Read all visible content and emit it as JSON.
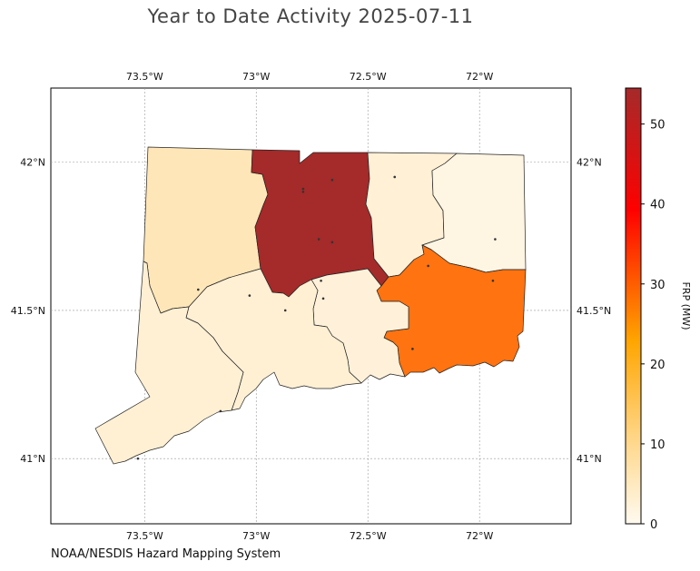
{
  "title": "Year to Date Activity 2025-07-11",
  "credit": "NOAA/NESDIS Hazard Mapping System",
  "map": {
    "extent": {
      "lon_min": -73.92,
      "lon_max": -71.59,
      "lat_min": 40.78,
      "lat_max": 42.25
    },
    "lon_ticks": [
      {
        "value": -73.5,
        "label": "73.5°W"
      },
      {
        "value": -73.0,
        "label": "73°W"
      },
      {
        "value": -72.5,
        "label": "72.5°W"
      },
      {
        "value": -72.0,
        "label": "72°W"
      }
    ],
    "lat_ticks": [
      {
        "value": 42.0,
        "label": "42°N"
      },
      {
        "value": 41.5,
        "label": "41.5°N"
      },
      {
        "value": 41.0,
        "label": "41°N"
      }
    ],
    "grid": true
  },
  "colorbar": {
    "label": "FRP (MW)",
    "min": 0,
    "max": 54.5,
    "ticks": [
      {
        "value": 0,
        "label": "0"
      },
      {
        "value": 10,
        "label": "10"
      },
      {
        "value": 20,
        "label": "20"
      },
      {
        "value": 30,
        "label": "30"
      },
      {
        "value": 40,
        "label": "40"
      },
      {
        "value": 50,
        "label": "50"
      }
    ],
    "stops": [
      {
        "frac": 0.0,
        "color": "#fffaf0"
      },
      {
        "frac": 0.2,
        "color": "#ffd585"
      },
      {
        "frac": 0.42,
        "color": "#ffa500"
      },
      {
        "frac": 0.72,
        "color": "#ff0000"
      },
      {
        "frac": 1.0,
        "color": "#a52a2a"
      }
    ]
  },
  "counties": [
    {
      "id": "litchfield",
      "frp": 5,
      "color": "#ffe6b8"
    },
    {
      "id": "hartford",
      "frp": 54.5,
      "color": "#a52a2a"
    },
    {
      "id": "tolland",
      "frp": 2,
      "color": "#fff0d6"
    },
    {
      "id": "windham",
      "frp": 1,
      "color": "#fff5e3"
    },
    {
      "id": "fairfield",
      "frp": 2.5,
      "color": "#fff0d4"
    },
    {
      "id": "new-haven",
      "frp": 2.5,
      "color": "#fff0d4"
    },
    {
      "id": "middlesex",
      "frp": 2,
      "color": "#fff1d9"
    },
    {
      "id": "new-london",
      "frp": 24,
      "color": "#ff7310"
    }
  ],
  "fire_points": [
    {
      "lon": -73.26,
      "lat": 41.57
    },
    {
      "lon": -72.79,
      "lat": 41.91
    },
    {
      "lon": -72.79,
      "lat": 41.9
    },
    {
      "lon": -72.66,
      "lat": 41.94
    },
    {
      "lon": -72.72,
      "lat": 41.74
    },
    {
      "lon": -72.66,
      "lat": 41.73
    },
    {
      "lon": -72.38,
      "lat": 41.95
    },
    {
      "lon": -71.93,
      "lat": 41.74
    },
    {
      "lon": -72.23,
      "lat": 41.65
    },
    {
      "lon": -71.94,
      "lat": 41.6
    },
    {
      "lon": -72.3,
      "lat": 41.37
    },
    {
      "lon": -72.71,
      "lat": 41.6
    },
    {
      "lon": -73.03,
      "lat": 41.55
    },
    {
      "lon": -72.7,
      "lat": 41.54
    },
    {
      "lon": -72.87,
      "lat": 41.5
    },
    {
      "lon": -73.16,
      "lat": 41.16
    },
    {
      "lon": -73.53,
      "lat": 41.0
    }
  ]
}
